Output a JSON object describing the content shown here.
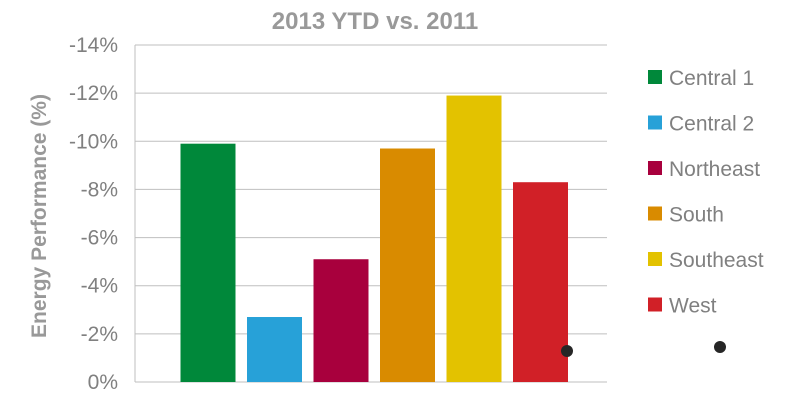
{
  "chart_data": {
    "type": "bar",
    "title": "2013 YTD vs. 2011",
    "ylabel": "Energy Performance (%)",
    "xlabel": "",
    "ylim": [
      0,
      -14
    ],
    "yticks": [
      {
        "value": 0,
        "label": "0%"
      },
      {
        "value": -2,
        "label": "-2%"
      },
      {
        "value": -4,
        "label": "-4%"
      },
      {
        "value": -6,
        "label": "-6%"
      },
      {
        "value": -8,
        "label": "-8%"
      },
      {
        "value": -10,
        "label": "-10%"
      },
      {
        "value": -12,
        "label": "-12%"
      },
      {
        "value": -14,
        "label": "-14%"
      }
    ],
    "grid": true,
    "legend": "right",
    "categories": [
      "Central 1",
      "Central 2",
      "Northeast",
      "South",
      "Southeast",
      "West"
    ],
    "values": [
      -9.9,
      -2.7,
      -5.1,
      -9.7,
      -11.9,
      -8.3
    ],
    "colors": [
      "#00883a",
      "#27a1d8",
      "#a8003d",
      "#d98b00",
      "#e3c200",
      "#d12027"
    ]
  }
}
